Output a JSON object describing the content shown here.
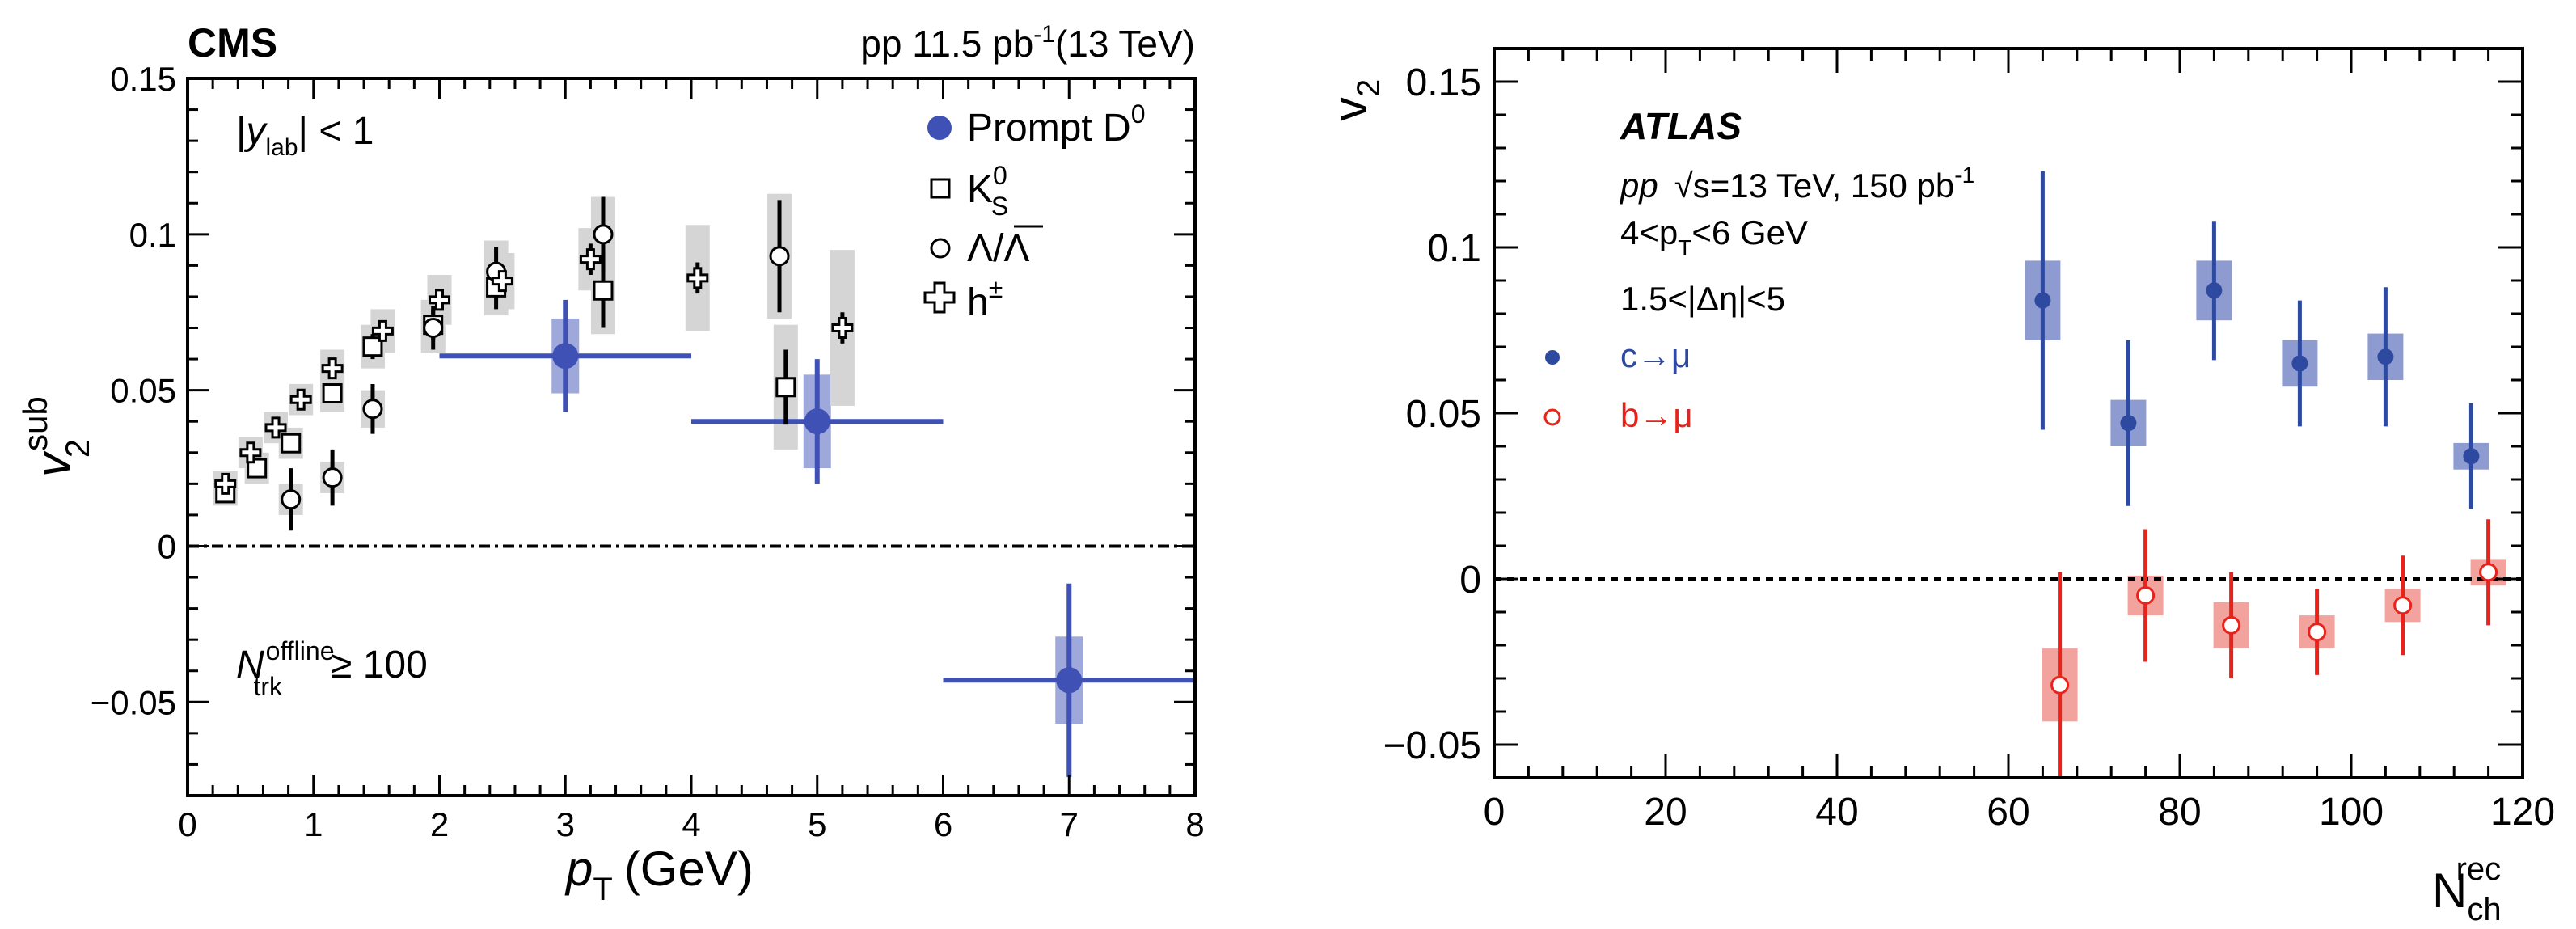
{
  "colors": {
    "cms_blue": "#3f51b5",
    "cms_blue_band": "#9fa8da",
    "cms_gray_band": "#d5d5d5",
    "atlas_blue": "#2e49a0",
    "atlas_blue_band": "#8d9bd0",
    "atlas_red": "#e8231c",
    "atlas_red_band": "#f3a39e"
  },
  "chart_data": [
    {
      "type": "scatter",
      "panel": "left",
      "experiment_label": "CMS",
      "collision_label": {
        "system": "pp 11.5 pb",
        "sup": "-1",
        "energy": "(13 TeV)"
      },
      "rapidity_label": {
        "prefix": "|",
        "var": "y",
        "sub": "lab",
        "suffix": "| < 1"
      },
      "multiplicity_label": {
        "var": "N",
        "sup": "offline",
        "sub": "trk",
        "suffix": "≥ 100"
      },
      "xlabel": {
        "var": "p",
        "sub": "T",
        "unit": "(GeV)"
      },
      "ylabel": {
        "var": "v",
        "sub": "2",
        "sup": "sub"
      },
      "xlim": [
        0,
        8
      ],
      "ylim": [
        -0.08,
        0.15
      ],
      "xticks": [
        "0",
        "1",
        "2",
        "3",
        "4",
        "5",
        "6",
        "7",
        "8"
      ],
      "yticks": [
        "−0.05",
        "0",
        "0.05",
        "0.1",
        "0.15"
      ],
      "ytick_values": [
        -0.05,
        0,
        0.05,
        0.1,
        0.15
      ],
      "legend": [
        {
          "marker": "filled-circle",
          "label": "Prompt D",
          "sup": "0"
        },
        {
          "marker": "open-square",
          "label": "K",
          "sub": "S",
          "sup": "0"
        },
        {
          "marker": "open-circle",
          "label": "Λ/Λ"
        },
        {
          "marker": "open-cross",
          "label": "h",
          "sup": "±"
        }
      ],
      "series": [
        {
          "name": "Prompt D0",
          "marker": "filled-circle",
          "points": [
            {
              "x": 3.0,
              "y": 0.061,
              "xerr": 1.0,
              "stat": 0.018,
              "syst": 0.012
            },
            {
              "x": 5.0,
              "y": 0.04,
              "xerr": 1.0,
              "stat": 0.02,
              "syst": 0.015
            },
            {
              "x": 7.0,
              "y": -0.043,
              "xerr": 1.0,
              "stat": 0.031,
              "syst": 0.014
            }
          ]
        },
        {
          "name": "KS0",
          "marker": "open-square",
          "points": [
            {
              "x": 0.3,
              "y": 0.017,
              "stat": 0.003,
              "syst": 0.004
            },
            {
              "x": 0.55,
              "y": 0.025,
              "stat": 0.003,
              "syst": 0.005
            },
            {
              "x": 0.82,
              "y": 0.033,
              "stat": 0.003,
              "syst": 0.005
            },
            {
              "x": 1.15,
              "y": 0.049,
              "stat": 0.003,
              "syst": 0.006
            },
            {
              "x": 1.47,
              "y": 0.064,
              "stat": 0.004,
              "syst": 0.007
            },
            {
              "x": 1.95,
              "y": 0.071,
              "stat": 0.005,
              "syst": 0.008
            },
            {
              "x": 2.45,
              "y": 0.083,
              "stat": 0.007,
              "syst": 0.009
            },
            {
              "x": 3.3,
              "y": 0.082,
              "stat": 0.012,
              "syst": 0.014
            },
            {
              "x": 4.75,
              "y": 0.051,
              "stat": 0.012,
              "syst": 0.02
            }
          ]
        },
        {
          "name": "Lambda",
          "marker": "open-circle",
          "points": [
            {
              "x": 0.82,
              "y": 0.015,
              "stat": 0.01,
              "syst": 0.005
            },
            {
              "x": 1.15,
              "y": 0.022,
              "stat": 0.009,
              "syst": 0.005
            },
            {
              "x": 1.47,
              "y": 0.044,
              "stat": 0.008,
              "syst": 0.006
            },
            {
              "x": 1.95,
              "y": 0.07,
              "stat": 0.007,
              "syst": 0.008
            },
            {
              "x": 2.45,
              "y": 0.088,
              "stat": 0.008,
              "syst": 0.01
            },
            {
              "x": 3.3,
              "y": 0.1,
              "stat": 0.012,
              "syst": 0.012
            },
            {
              "x": 4.7,
              "y": 0.093,
              "stat": 0.018,
              "syst": 0.02
            }
          ]
        },
        {
          "name": "h±",
          "marker": "open-cross",
          "points": [
            {
              "x": 0.3,
              "y": 0.02,
              "stat": 0.002,
              "syst": 0.004
            },
            {
              "x": 0.5,
              "y": 0.03,
              "stat": 0.002,
              "syst": 0.005
            },
            {
              "x": 0.7,
              "y": 0.038,
              "stat": 0.002,
              "syst": 0.005
            },
            {
              "x": 0.9,
              "y": 0.047,
              "stat": 0.002,
              "syst": 0.005
            },
            {
              "x": 1.15,
              "y": 0.057,
              "stat": 0.003,
              "syst": 0.006
            },
            {
              "x": 1.55,
              "y": 0.069,
              "stat": 0.003,
              "syst": 0.007
            },
            {
              "x": 2.0,
              "y": 0.079,
              "stat": 0.003,
              "syst": 0.008
            },
            {
              "x": 2.5,
              "y": 0.085,
              "stat": 0.004,
              "syst": 0.009
            },
            {
              "x": 3.2,
              "y": 0.092,
              "stat": 0.005,
              "syst": 0.01
            },
            {
              "x": 4.05,
              "y": 0.086,
              "stat": 0.005,
              "syst": 0.017
            },
            {
              "x": 5.2,
              "y": 0.07,
              "stat": 0.005,
              "syst": 0.025
            }
          ]
        }
      ]
    },
    {
      "type": "scatter",
      "panel": "right",
      "experiment_label": "ATLAS",
      "info_lines": {
        "pp": "pp",
        "energy": "√s=13 TeV, 150 pb",
        "lumi_sup": "-1",
        "pt_pre": "4<p",
        "pt_sub": "T",
        "pt_post": "<6 GeV",
        "eta": "1.5<|Δη|<5"
      },
      "xlabel": {
        "var": "N",
        "sub": "ch",
        "sup": "rec"
      },
      "ylabel": {
        "var": "v",
        "sub": "2"
      },
      "xlim": [
        0,
        120
      ],
      "ylim": [
        -0.06,
        0.16
      ],
      "xticks": [
        "0",
        "20",
        "40",
        "60",
        "80",
        "100",
        "120"
      ],
      "xtick_values": [
        0,
        20,
        40,
        60,
        80,
        100,
        120
      ],
      "yticks": [
        "−0.05",
        "0",
        "0.05",
        "0.1",
        "0.15"
      ],
      "ytick_values": [
        -0.05,
        0,
        0.05,
        0.1,
        0.15
      ],
      "legend": [
        {
          "marker": "filled-circle",
          "label": "c→μ"
        },
        {
          "marker": "open-circle",
          "label": "b→μ"
        }
      ],
      "series": [
        {
          "name": "c→μ",
          "color": "blue",
          "points": [
            {
              "x": 64,
              "y": 0.084,
              "stat": 0.039,
              "syst": 0.012
            },
            {
              "x": 74,
              "y": 0.047,
              "stat": 0.025,
              "syst": 0.007
            },
            {
              "x": 84,
              "y": 0.087,
              "stat": 0.021,
              "syst": 0.009
            },
            {
              "x": 94,
              "y": 0.065,
              "stat": 0.019,
              "syst": 0.007
            },
            {
              "x": 104,
              "y": 0.067,
              "stat": 0.021,
              "syst": 0.007
            },
            {
              "x": 114,
              "y": 0.037,
              "stat": 0.016,
              "syst": 0.004
            }
          ]
        },
        {
          "name": "b→μ",
          "color": "red",
          "points": [
            {
              "x": 66,
              "y": -0.032,
              "stat": 0.034,
              "syst": 0.011
            },
            {
              "x": 76,
              "y": -0.005,
              "stat": 0.02,
              "syst": 0.006
            },
            {
              "x": 86,
              "y": -0.014,
              "stat": 0.016,
              "syst": 0.007
            },
            {
              "x": 96,
              "y": -0.016,
              "stat": 0.013,
              "syst": 0.005
            },
            {
              "x": 106,
              "y": -0.008,
              "stat": 0.015,
              "syst": 0.005
            },
            {
              "x": 116,
              "y": 0.002,
              "stat": 0.016,
              "syst": 0.004
            }
          ]
        }
      ]
    }
  ]
}
